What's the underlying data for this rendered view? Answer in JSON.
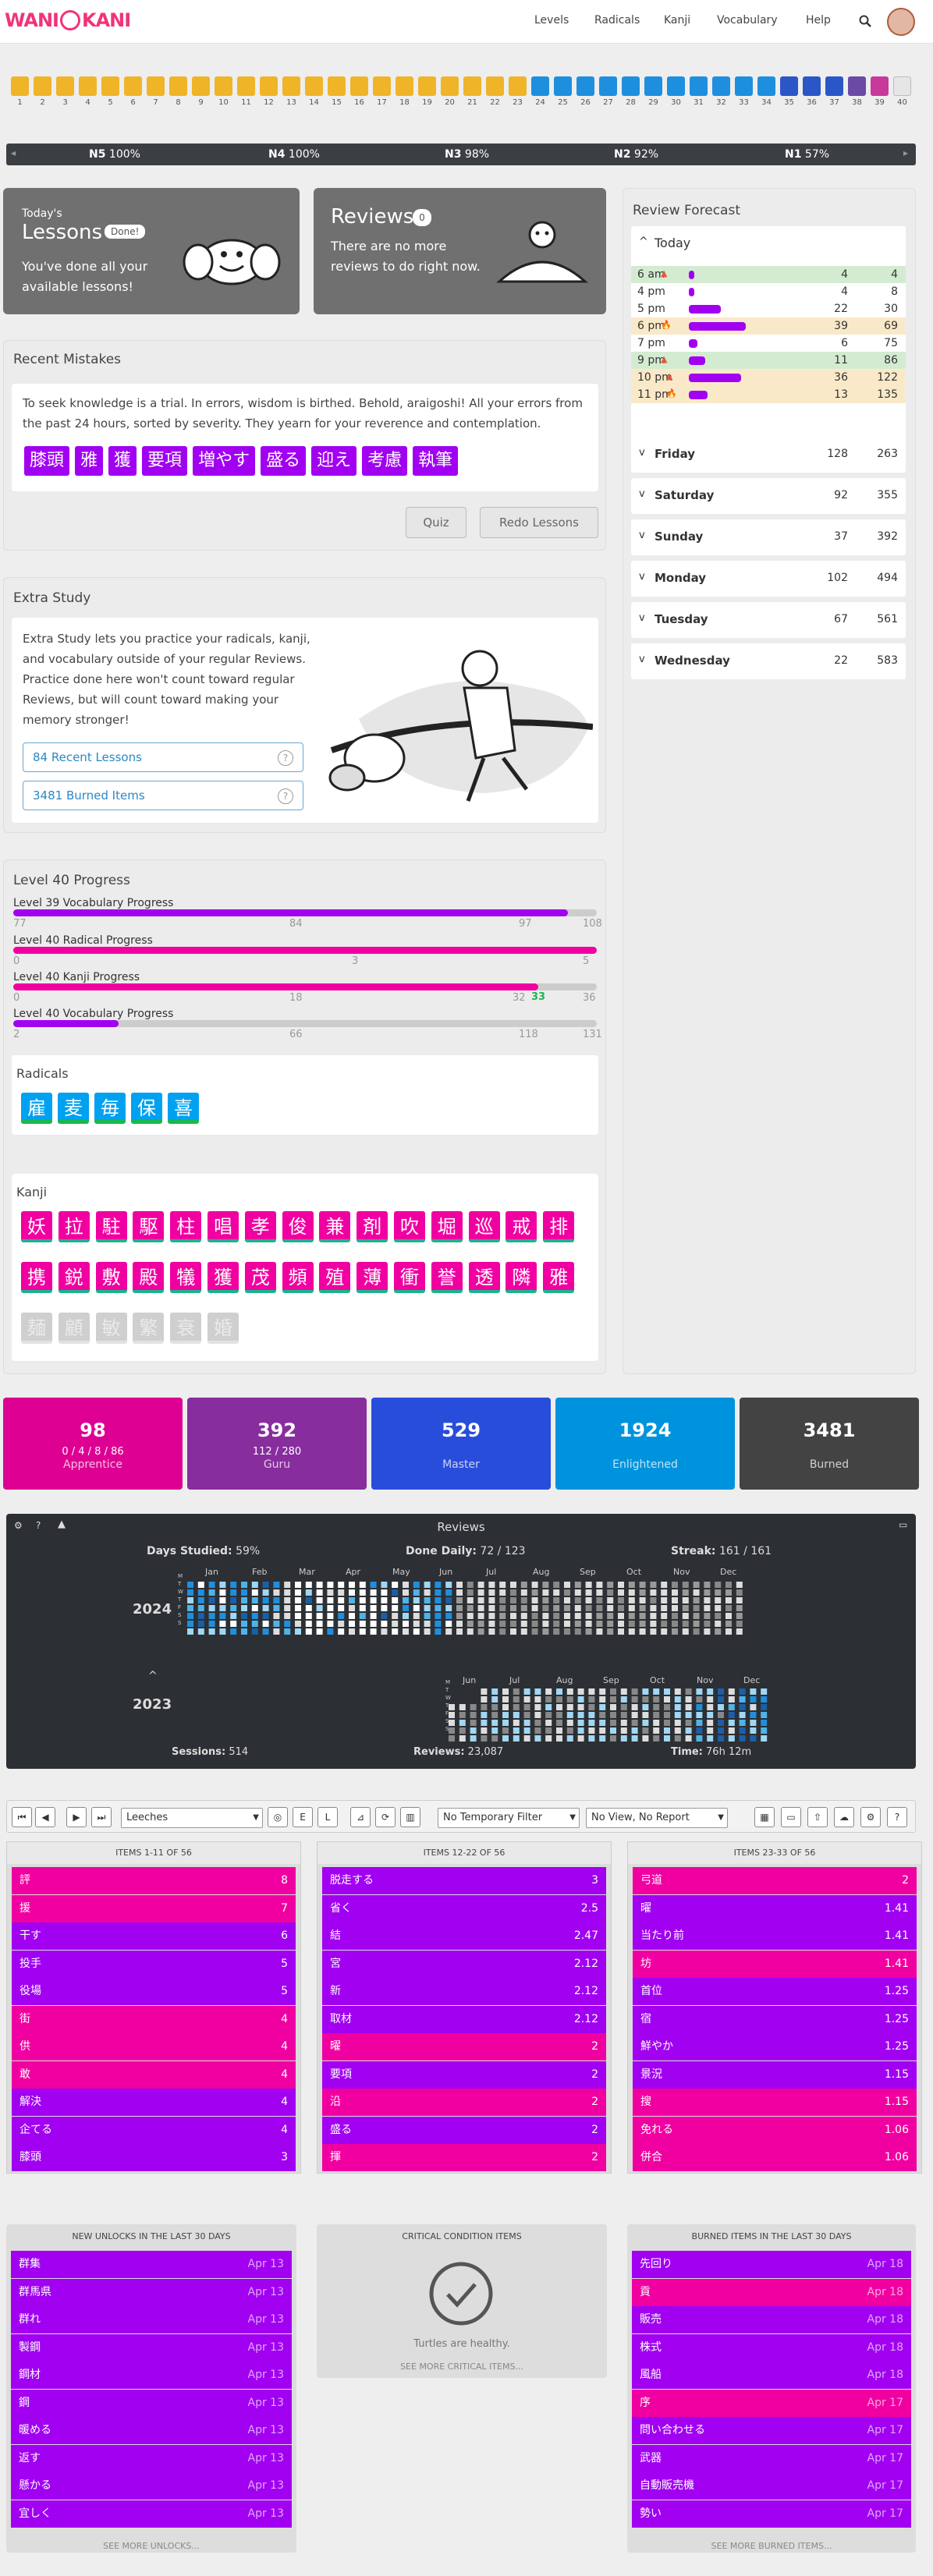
{
  "header": {
    "logo": "WANIKANI",
    "nav": [
      "Levels",
      "Radicals",
      "Kanji",
      "Vocabulary",
      "Help"
    ]
  },
  "levels": [
    "1",
    "2",
    "3",
    "4",
    "5",
    "6",
    "7",
    "8",
    "9",
    "10",
    "11",
    "12",
    "13",
    "14",
    "15",
    "16",
    "17",
    "18",
    "19",
    "20",
    "21",
    "22",
    "23",
    "24",
    "25",
    "26",
    "27",
    "28",
    "29",
    "30",
    "31",
    "32",
    "33",
    "34",
    "35",
    "36",
    "37",
    "38",
    "39",
    "40"
  ],
  "jlpt": [
    {
      "level": "N5",
      "pct": "100%"
    },
    {
      "level": "N4",
      "pct": "100%"
    },
    {
      "level": "N3",
      "pct": "98%"
    },
    {
      "level": "N2",
      "pct": "92%"
    },
    {
      "level": "N1",
      "pct": "57%"
    }
  ],
  "lessons": {
    "small": "Today's",
    "title": "Lessons",
    "badge": "Done!",
    "text": "You've done all your available lessons!"
  },
  "reviews": {
    "title": "Reviews",
    "badge": "0",
    "text": "There are no more reviews to do right now."
  },
  "mistakes": {
    "title": "Recent Mistakes",
    "text": "To seek knowledge is a trial. In errors, wisdom is birthed. Behold, araigoshi! All your errors from the past 24 hours, sorted by severity. They yearn for your reverence and contemplation.",
    "items": [
      "膝頭",
      "雅",
      "獲",
      "要項",
      "増やす",
      "盛る",
      "迎え",
      "考慮",
      "執筆"
    ],
    "quiz": "Quiz",
    "redo": "Redo Lessons"
  },
  "extra": {
    "title": "Extra Study",
    "text": "Extra Study lets you practice your radicals, kanji, and vocabulary outside of your regular Reviews. Practice done here won't count toward regular Reviews, but will count toward making your memory stronger!",
    "link1": "84 Recent Lessons",
    "link2": "3481 Burned Items",
    "help": "?"
  },
  "progress": {
    "title": "Level 40 Progress",
    "bars": [
      {
        "label": "Level 39 Vocabulary Progress",
        "left": "77",
        "mid": "84",
        "right_a": "97",
        "right_b": "108"
      },
      {
        "label": "Level 40 Radical Progress",
        "left": "0",
        "mid": "3",
        "right_a": "",
        "right_b": "5"
      },
      {
        "label": "Level 40 Kanji Progress",
        "left": "0",
        "mid": "18",
        "right_a": "32",
        "right_g": "33",
        "right_b": "36"
      },
      {
        "label": "Level 40 Vocabulary Progress",
        "left": "2",
        "mid": "66",
        "right_a": "118",
        "right_b": "131"
      }
    ],
    "fills": [
      0.95,
      1.0,
      0.9,
      0.18
    ]
  },
  "radicals": {
    "title": "Radicals",
    "items": [
      "雇",
      "麦",
      "毎",
      "保",
      "喜"
    ]
  },
  "kanji": {
    "title": "Kanji",
    "row1": [
      "妖",
      "拉",
      "駐",
      "駆",
      "柱",
      "唱",
      "孝",
      "俊",
      "兼",
      "剤",
      "吹",
      "堀",
      "巡",
      "戒",
      "排"
    ],
    "row2": [
      "携",
      "鋭",
      "敷",
      "殿",
      "犠",
      "獲",
      "茂",
      "頻",
      "殖",
      "薄",
      "衝",
      "誉",
      "透",
      "隣",
      "雅"
    ],
    "row3": [
      "麺",
      "顧",
      "敏",
      "繁",
      "衰",
      "婚"
    ]
  },
  "forecast": {
    "title": "Review Forecast",
    "today": "Today",
    "rows": [
      {
        "t": "6 am",
        "a": "4",
        "b": "4",
        "ic": "▲",
        "ic_color": "#e25a3c",
        "bg": "#d3ecd1",
        "fill": 0.05
      },
      {
        "t": "4 pm",
        "a": "4",
        "b": "8",
        "ic": "",
        "bg": "#fff",
        "fill": 0.05
      },
      {
        "t": "5 pm",
        "a": "22",
        "b": "30",
        "ic": "",
        "bg": "#fff",
        "fill": 0.29
      },
      {
        "t": "6 pm",
        "a": "39",
        "b": "69",
        "ic": "🔥",
        "ic_color": "#e28a17",
        "bg": "#fae9c8",
        "fill": 0.52
      },
      {
        "t": "7 pm",
        "a": "6",
        "b": "75",
        "ic": "",
        "bg": "#fff",
        "fill": 0.08
      },
      {
        "t": "9 pm",
        "a": "11",
        "b": "86",
        "ic": "▲",
        "ic_color": "#e25a3c",
        "bg": "#d3ecd1",
        "fill": 0.15
      },
      {
        "t": "10 pm",
        "a": "36",
        "b": "122",
        "ic": "▲",
        "ic_color": "#e25a3c",
        "bg": "#fae9c8",
        "fill": 0.48
      },
      {
        "t": "11 pm",
        "a": "13",
        "b": "135",
        "ic": "🔥",
        "ic_color": "#e28a17",
        "bg": "#fae9c8",
        "fill": 0.17
      }
    ],
    "days": [
      {
        "d": "Friday",
        "a": "128",
        "b": "263"
      },
      {
        "d": "Saturday",
        "a": "92",
        "b": "355"
      },
      {
        "d": "Sunday",
        "a": "37",
        "b": "392"
      },
      {
        "d": "Monday",
        "a": "102",
        "b": "494"
      },
      {
        "d": "Tuesday",
        "a": "67",
        "b": "561"
      },
      {
        "d": "Wednesday",
        "a": "22",
        "b": "583"
      }
    ]
  },
  "srs": [
    {
      "n": "98",
      "s": "0 / 4 / 8 / 86",
      "name": "Apprentice",
      "color": "#dd0093"
    },
    {
      "n": "392",
      "s": "112 / 280",
      "name": "Guru",
      "color": "#882d9e"
    },
    {
      "n": "529",
      "s": "",
      "name": "Master",
      "color": "#294ddb"
    },
    {
      "n": "1924",
      "s": "",
      "name": "Enlightened",
      "color": "#0093dd"
    },
    {
      "n": "3481",
      "s": "",
      "name": "Burned",
      "color": "#434343"
    }
  ],
  "heatmap": {
    "title": "Reviews",
    "days_studied": "Days Studied:",
    "ds_val": "59%",
    "done_daily": "Done Daily:",
    "dd_val": "72 / 123",
    "streak": "Streak:",
    "st_val": "161 / 161",
    "y1": "2024",
    "y2": "2023",
    "months1": [
      "Jan",
      "Feb",
      "Mar",
      "Apr",
      "May",
      "Jun",
      "Jul",
      "Aug",
      "Sep",
      "Oct",
      "Nov",
      "Dec"
    ],
    "months2": [
      "Jun",
      "Jul",
      "Aug",
      "Sep",
      "Oct",
      "Nov",
      "Dec"
    ],
    "weekdays": [
      "M",
      "T",
      "W",
      "T",
      "F",
      "S",
      "S"
    ],
    "sessions": "Sessions:",
    "sess_val": "514",
    "reviews": "Reviews:",
    "rev_val": "23,087",
    "time": "Time:",
    "time_val": "76h 12m"
  },
  "leech": {
    "select1": "Leeches",
    "select2": "No Temporary Filter",
    "select3": "No View, No Report",
    "btn_e": "E",
    "btn_l": "L",
    "col1": {
      "title": "ITEMS 1-11 OF 56",
      "items": [
        [
          "評",
          "8"
        ],
        [
          "援",
          "7"
        ],
        [
          "干す",
          "6"
        ],
        [
          "投手",
          "5"
        ],
        [
          "役場",
          "5"
        ],
        [
          "街",
          "4"
        ],
        [
          "供",
          "4"
        ],
        [
          "敢",
          "4"
        ],
        [
          "解決",
          "4"
        ],
        [
          "企てる",
          "4"
        ],
        [
          "膝頭",
          "3"
        ]
      ]
    },
    "col2": {
      "title": "ITEMS 12-22 OF 56",
      "items": [
        [
          "脱走する",
          "3"
        ],
        [
          "省く",
          "2.5"
        ],
        [
          "結",
          "2.47"
        ],
        [
          "宮",
          "2.12"
        ],
        [
          "新",
          "2.12"
        ],
        [
          "取材",
          "2.12"
        ],
        [
          "曜",
          "2"
        ],
        [
          "要項",
          "2"
        ],
        [
          "沿",
          "2"
        ],
        [
          "盛る",
          "2"
        ],
        [
          "揮",
          "2"
        ]
      ]
    },
    "col3": {
      "title": "ITEMS 23-33 OF 56",
      "items": [
        [
          "弓道",
          "2"
        ],
        [
          "曜",
          "1.41"
        ],
        [
          "当たり前",
          "1.41"
        ],
        [
          "坊",
          "1.41"
        ],
        [
          "首位",
          "1.25"
        ],
        [
          "宿",
          "1.25"
        ],
        [
          "鮮やか",
          "1.25"
        ],
        [
          "景況",
          "1.15"
        ],
        [
          "搜",
          "1.15"
        ],
        [
          "免れる",
          "1.06"
        ],
        [
          "併合",
          "1.06"
        ]
      ]
    }
  },
  "unlocks": {
    "title": "NEW UNLOCKS IN THE LAST 30 DAYS",
    "more": "SEE MORE UNLOCKS...",
    "items": [
      [
        "群集",
        "Apr 13"
      ],
      [
        "群馬県",
        "Apr 13"
      ],
      [
        "群れ",
        "Apr 13"
      ],
      [
        "製鋼",
        "Apr 13"
      ],
      [
        "鋼材",
        "Apr 13"
      ],
      [
        "鋼",
        "Apr 13"
      ],
      [
        "暖める",
        "Apr 13"
      ],
      [
        "返す",
        "Apr 13"
      ],
      [
        "懸かる",
        "Apr 13"
      ],
      [
        "宜しく",
        "Apr 13"
      ]
    ]
  },
  "critical": {
    "title": "CRITICAL CONDITION ITEMS",
    "text": "Turtles are healthy.",
    "more": "SEE MORE CRITICAL ITEMS..."
  },
  "burned": {
    "title": "BURNED ITEMS IN THE LAST 30 DAYS",
    "more": "SEE MORE BURNED ITEMS...",
    "items": [
      [
        "先回り",
        "Apr 18"
      ],
      [
        "貢",
        "Apr 18"
      ],
      [
        "販売",
        "Apr 18"
      ],
      [
        "株式",
        "Apr 18"
      ],
      [
        "風船",
        "Apr 18"
      ],
      [
        "序",
        "Apr 17"
      ],
      [
        "問い合わせる",
        "Apr 17"
      ],
      [
        "武器",
        "Apr 17"
      ],
      [
        "自動販売機",
        "Apr 17"
      ],
      [
        "勢い",
        "Apr 17"
      ]
    ]
  }
}
